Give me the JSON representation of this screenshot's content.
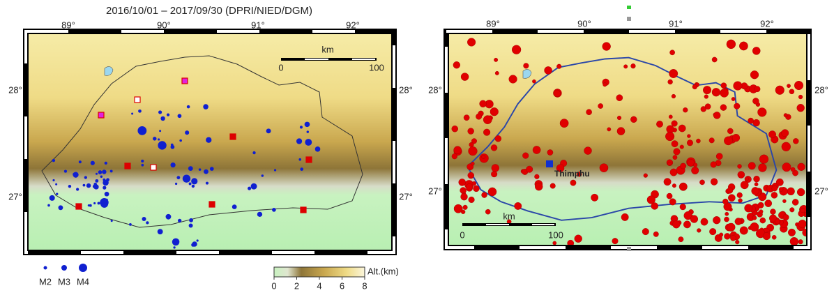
{
  "left_map": {
    "title": "2016/10/01 – 2017/09/30 (DPRI/NIED/DGM)",
    "lon_labels": [
      "89°",
      "90°",
      "91°",
      "92°"
    ],
    "lat_labels_left": [
      "28°",
      "27°"
    ],
    "lat_labels_right": [
      "28°",
      "27°"
    ],
    "scale_bar": {
      "unit": "km",
      "start": "0",
      "end": "100"
    }
  },
  "legend": {
    "magnitudes": [
      "M2",
      "M3",
      "M4"
    ]
  },
  "colorbar": {
    "label": "Alt.(km)",
    "ticks": [
      0,
      2,
      4,
      6,
      8
    ]
  },
  "right_map": {
    "lon_labels": [
      "89°",
      "90°",
      "91°",
      "92°"
    ],
    "lat_labels_left": [
      "28°",
      "27°"
    ],
    "lat_labels_right": [
      "28°",
      "27°"
    ],
    "scale_bar": {
      "unit": "km",
      "start": "0",
      "end": "100"
    },
    "place_label": "Thimphu"
  }
}
